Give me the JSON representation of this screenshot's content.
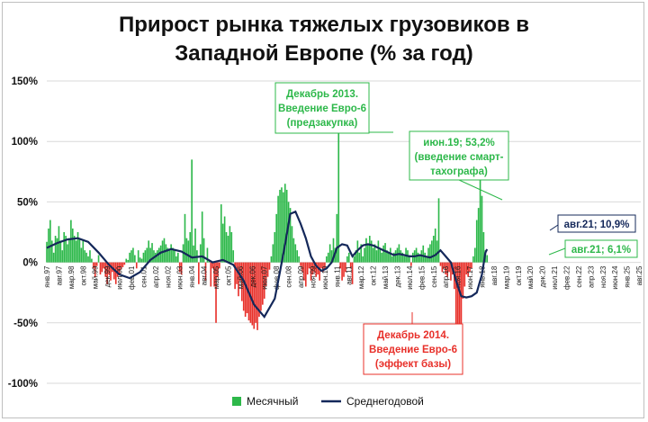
{
  "chart_data": {
    "type": "bar",
    "title_lines": [
      "Прирост рынка тяжелых грузовиков в",
      "Западной Европе (% за год)"
    ],
    "ylim": [
      -100,
      150
    ],
    "yticks": [
      "150%",
      "100%",
      "50%",
      "0%",
      "-50%",
      "-100%"
    ],
    "ytick_values": [
      150,
      100,
      50,
      0,
      -50,
      -100
    ],
    "grid": true,
    "legend_position": "bottom",
    "colors": {
      "positive": "#2db84a",
      "negative": "#e8302a",
      "line": "#14285a",
      "grid": "#d9d9d9",
      "green_note": "#2db84a",
      "red_note": "#e8302a",
      "navy_note": "#14285a"
    },
    "x_labels": [
      "янв.97",
      "авг.97",
      "мар.98",
      "окт.98",
      "май.99",
      "дек.99",
      "июл.00",
      "фев.01",
      "сен.01",
      "апр.02",
      "ноя.02",
      "июн.03",
      "янв.04",
      "авг.04",
      "мар.05",
      "окт.05",
      "май.06",
      "дек.06",
      "июл.07",
      "фев.08",
      "сен.08",
      "апр.09",
      "ноя.09",
      "июн.10",
      "янв.11",
      "авг.11",
      "мар.12",
      "окт.12",
      "май.13",
      "дек.13",
      "июл.14",
      "фев.15",
      "сен.15",
      "апр.16",
      "ноя.16",
      "июн.17",
      "янв.18",
      "авг.18",
      "мар.19",
      "окт.19",
      "май.20",
      "дек.20",
      "июл.21",
      "фев.22",
      "сен.22",
      "апр.23",
      "ноя.23",
      "июн.24",
      "янв.25",
      "авг.25"
    ],
    "bar_points": [
      [
        0,
        17
      ],
      [
        1,
        28
      ],
      [
        2,
        35
      ],
      [
        3,
        18
      ],
      [
        4,
        8
      ],
      [
        5,
        22
      ],
      [
        6,
        20
      ],
      [
        7,
        30
      ],
      [
        8,
        18
      ],
      [
        9,
        10
      ],
      [
        10,
        25
      ],
      [
        11,
        22
      ],
      [
        12,
        15
      ],
      [
        13,
        20
      ],
      [
        14,
        35
      ],
      [
        15,
        28
      ],
      [
        16,
        22
      ],
      [
        17,
        18
      ],
      [
        18,
        25
      ],
      [
        19,
        20
      ],
      [
        20,
        12
      ],
      [
        21,
        18
      ],
      [
        22,
        10
      ],
      [
        23,
        8
      ],
      [
        24,
        5
      ],
      [
        25,
        10
      ],
      [
        26,
        3
      ],
      [
        27,
        -5
      ],
      [
        28,
        -12
      ],
      [
        29,
        -3
      ],
      [
        30,
        6
      ],
      [
        31,
        -10
      ],
      [
        32,
        -8
      ],
      [
        33,
        -5
      ],
      [
        34,
        -12
      ],
      [
        35,
        -18
      ],
      [
        36,
        -10
      ],
      [
        37,
        -15
      ],
      [
        38,
        -8
      ],
      [
        39,
        -14
      ],
      [
        40,
        -18
      ],
      [
        41,
        -12
      ],
      [
        42,
        -10
      ],
      [
        43,
        -6
      ],
      [
        44,
        -4
      ],
      [
        45,
        -2
      ],
      [
        46,
        3
      ],
      [
        47,
        2
      ],
      [
        48,
        8
      ],
      [
        49,
        10
      ],
      [
        50,
        12
      ],
      [
        51,
        6
      ],
      [
        52,
        -5
      ],
      [
        53,
        10
      ],
      [
        54,
        4
      ],
      [
        55,
        3
      ],
      [
        56,
        8
      ],
      [
        57,
        10
      ],
      [
        58,
        12
      ],
      [
        59,
        18
      ],
      [
        60,
        12
      ],
      [
        61,
        16
      ],
      [
        62,
        10
      ],
      [
        63,
        8
      ],
      [
        64,
        10
      ],
      [
        65,
        12
      ],
      [
        66,
        14
      ],
      [
        67,
        18
      ],
      [
        68,
        20
      ],
      [
        69,
        15
      ],
      [
        70,
        12
      ],
      [
        71,
        10
      ],
      [
        72,
        15
      ],
      [
        73,
        12
      ],
      [
        74,
        10
      ],
      [
        75,
        5
      ],
      [
        76,
        8
      ],
      [
        77,
        -8
      ],
      [
        78,
        -10
      ],
      [
        79,
        15
      ],
      [
        80,
        40
      ],
      [
        81,
        20
      ],
      [
        82,
        18
      ],
      [
        83,
        25
      ],
      [
        84,
        85
      ],
      [
        85,
        14
      ],
      [
        86,
        28
      ],
      [
        87,
        10
      ],
      [
        88,
        -18
      ],
      [
        89,
        15
      ],
      [
        90,
        42
      ],
      [
        91,
        20
      ],
      [
        92,
        -15
      ],
      [
        93,
        12
      ],
      [
        94,
        2
      ],
      [
        95,
        -20
      ],
      [
        96,
        -5
      ],
      [
        97,
        -20
      ],
      [
        98,
        -50
      ],
      [
        99,
        -12
      ],
      [
        100,
        -5
      ],
      [
        101,
        48
      ],
      [
        102,
        32
      ],
      [
        103,
        38
      ],
      [
        104,
        25
      ],
      [
        105,
        22
      ],
      [
        106,
        30
      ],
      [
        107,
        25
      ],
      [
        108,
        10
      ],
      [
        109,
        -22
      ],
      [
        110,
        -18
      ],
      [
        111,
        -28
      ],
      [
        112,
        -15
      ],
      [
        113,
        -32
      ],
      [
        114,
        -40
      ],
      [
        115,
        -45
      ],
      [
        116,
        -42
      ],
      [
        117,
        -48
      ],
      [
        118,
        -50
      ],
      [
        119,
        -52
      ],
      [
        120,
        -55
      ],
      [
        121,
        -50
      ],
      [
        122,
        -56
      ],
      [
        123,
        -45
      ],
      [
        124,
        -40
      ],
      [
        125,
        -35
      ],
      [
        126,
        -30
      ],
      [
        127,
        -20
      ],
      [
        128,
        -12
      ],
      [
        129,
        -6
      ],
      [
        130,
        5
      ],
      [
        131,
        15
      ],
      [
        132,
        25
      ],
      [
        133,
        40
      ],
      [
        134,
        55
      ],
      [
        135,
        60
      ],
      [
        136,
        62
      ],
      [
        137,
        58
      ],
      [
        138,
        65
      ],
      [
        139,
        60
      ],
      [
        140,
        50
      ],
      [
        141,
        45
      ],
      [
        142,
        30
      ],
      [
        143,
        20
      ],
      [
        144,
        15
      ],
      [
        145,
        10
      ],
      [
        146,
        5
      ],
      [
        147,
        -3
      ],
      [
        148,
        -8
      ],
      [
        149,
        -15
      ],
      [
        150,
        -20
      ],
      [
        151,
        -10
      ],
      [
        152,
        -5
      ],
      [
        153,
        -15
      ],
      [
        154,
        -10
      ],
      [
        155,
        -8
      ],
      [
        156,
        -12
      ],
      [
        157,
        -10
      ],
      [
        158,
        -15
      ],
      [
        159,
        -5
      ],
      [
        160,
        -8
      ],
      [
        161,
        -5
      ],
      [
        162,
        5
      ],
      [
        163,
        8
      ],
      [
        164,
        15
      ],
      [
        165,
        10
      ],
      [
        166,
        20
      ],
      [
        167,
        12
      ],
      [
        168,
        40
      ],
      [
        169,
        127
      ],
      [
        170,
        -5
      ],
      [
        171,
        -15
      ],
      [
        172,
        -12
      ],
      [
        173,
        -8
      ],
      [
        174,
        5
      ],
      [
        175,
        8
      ],
      [
        176,
        -5
      ],
      [
        177,
        -18
      ],
      [
        178,
        5
      ],
      [
        179,
        10
      ],
      [
        180,
        18
      ],
      [
        181,
        8
      ],
      [
        182,
        15
      ],
      [
        183,
        5
      ],
      [
        184,
        12
      ],
      [
        185,
        20
      ],
      [
        186,
        15
      ],
      [
        187,
        22
      ],
      [
        188,
        18
      ],
      [
        189,
        12
      ],
      [
        190,
        15
      ],
      [
        191,
        10
      ],
      [
        192,
        18
      ],
      [
        193,
        12
      ],
      [
        194,
        8
      ],
      [
        195,
        14
      ],
      [
        196,
        16
      ],
      [
        197,
        10
      ],
      [
        198,
        8
      ],
      [
        199,
        12
      ],
      [
        200,
        5
      ],
      [
        201,
        8
      ],
      [
        202,
        10
      ],
      [
        203,
        12
      ],
      [
        204,
        15
      ],
      [
        205,
        10
      ],
      [
        206,
        8
      ],
      [
        207,
        5
      ],
      [
        208,
        12
      ],
      [
        209,
        10
      ],
      [
        210,
        6
      ],
      [
        211,
        -3
      ],
      [
        212,
        8
      ],
      [
        213,
        10
      ],
      [
        214,
        12
      ],
      [
        215,
        8
      ],
      [
        216,
        6
      ],
      [
        217,
        10
      ],
      [
        218,
        14
      ],
      [
        219,
        8
      ],
      [
        220,
        5
      ],
      [
        221,
        12
      ],
      [
        222,
        15
      ],
      [
        223,
        18
      ],
      [
        224,
        22
      ],
      [
        225,
        28
      ],
      [
        226,
        18
      ],
      [
        227,
        53
      ],
      [
        228,
        -3
      ],
      [
        229,
        -8
      ],
      [
        230,
        -5
      ],
      [
        231,
        -10
      ],
      [
        232,
        -12
      ],
      [
        233,
        -8
      ],
      [
        234,
        -15
      ],
      [
        235,
        -10
      ],
      [
        236,
        -22
      ],
      [
        237,
        -55
      ],
      [
        238,
        -58
      ],
      [
        239,
        -56
      ],
      [
        240,
        -57
      ],
      [
        241,
        -30
      ],
      [
        242,
        -20
      ],
      [
        243,
        -10
      ],
      [
        244,
        -12
      ],
      [
        245,
        -8
      ],
      [
        246,
        -5
      ],
      [
        247,
        5
      ],
      [
        248,
        12
      ],
      [
        249,
        35
      ],
      [
        250,
        45
      ],
      [
        251,
        85
      ],
      [
        252,
        55
      ],
      [
        253,
        25
      ],
      [
        254,
        10
      ],
      [
        255,
        6
      ]
    ],
    "line_points": [
      [
        0,
        12
      ],
      [
        6,
        16
      ],
      [
        12,
        19
      ],
      [
        18,
        20
      ],
      [
        24,
        17
      ],
      [
        30,
        8
      ],
      [
        36,
        -2
      ],
      [
        42,
        -10
      ],
      [
        48,
        -13
      ],
      [
        54,
        -8
      ],
      [
        60,
        2
      ],
      [
        66,
        8
      ],
      [
        72,
        11
      ],
      [
        78,
        9
      ],
      [
        84,
        4
      ],
      [
        90,
        5
      ],
      [
        96,
        0
      ],
      [
        102,
        2
      ],
      [
        108,
        -2
      ],
      [
        114,
        -15
      ],
      [
        120,
        -35
      ],
      [
        126,
        -45
      ],
      [
        132,
        -30
      ],
      [
        135,
        -8
      ],
      [
        138,
        15
      ],
      [
        141,
        40
      ],
      [
        144,
        42
      ],
      [
        147,
        32
      ],
      [
        150,
        20
      ],
      [
        153,
        5
      ],
      [
        156,
        -3
      ],
      [
        159,
        -7
      ],
      [
        162,
        -5
      ],
      [
        165,
        0
      ],
      [
        168,
        12
      ],
      [
        171,
        15
      ],
      [
        174,
        14
      ],
      [
        177,
        5
      ],
      [
        180,
        10
      ],
      [
        183,
        14
      ],
      [
        186,
        15
      ],
      [
        189,
        14
      ],
      [
        192,
        12
      ],
      [
        195,
        10
      ],
      [
        198,
        8
      ],
      [
        201,
        6
      ],
      [
        204,
        7
      ],
      [
        207,
        6
      ],
      [
        210,
        5
      ],
      [
        213,
        5
      ],
      [
        216,
        6
      ],
      [
        219,
        5
      ],
      [
        222,
        4
      ],
      [
        225,
        6
      ],
      [
        228,
        10
      ],
      [
        231,
        5
      ],
      [
        234,
        0
      ],
      [
        237,
        -15
      ],
      [
        240,
        -28
      ],
      [
        243,
        -29
      ],
      [
        246,
        -28
      ],
      [
        249,
        -25
      ],
      [
        252,
        -10
      ],
      [
        254,
        8
      ],
      [
        255,
        10.9
      ]
    ],
    "annotations": {
      "dec2013": [
        "Декабрь 2013.",
        "Введение Евро-6",
        "(предзакупка)"
      ],
      "jun19": [
        "июн.19; 53,2%",
        "(введение смарт-",
        "тахографа)"
      ],
      "dec2014": [
        "Декабрь 2014.",
        "Введение Евро-6",
        "(эффект базы)"
      ],
      "aug21_avg": "авг.21; 10,9%",
      "aug21_month": "авг.21; 6,1%"
    },
    "legend": {
      "monthly": "Месячный",
      "avg": "Среднегодовой"
    }
  }
}
